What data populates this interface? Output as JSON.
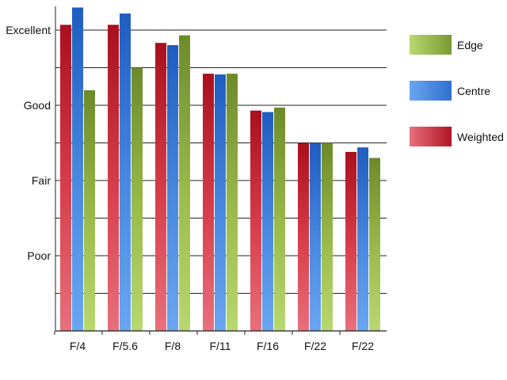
{
  "chart_data": {
    "type": "bar",
    "categories": [
      "F/4",
      "F/5.6",
      "F/8",
      "F/11",
      "F/16",
      "F/22",
      "F/22"
    ],
    "y_tick_labels": [
      "Poor",
      "Fair",
      "Good",
      "Excellent"
    ],
    "y_tick_values": [
      1,
      2,
      3,
      4
    ],
    "ylim": [
      0,
      4.3
    ],
    "grid": true,
    "legend_position": "right",
    "legend": [
      "Edge",
      "Centre",
      "Weighted"
    ],
    "series": [
      {
        "name": "Weighted",
        "color": "#c4202c",
        "values": [
          4.07,
          4.07,
          3.83,
          3.42,
          2.93,
          2.5,
          2.38
        ]
      },
      {
        "name": "Centre",
        "color": "#2f6fd0",
        "values": [
          4.3,
          4.22,
          3.8,
          3.41,
          2.91,
          2.5,
          2.44
        ]
      },
      {
        "name": "Edge",
        "color": "#8aa83c",
        "values": [
          3.2,
          3.5,
          3.93,
          3.42,
          2.97,
          2.5,
          2.3
        ]
      }
    ]
  }
}
